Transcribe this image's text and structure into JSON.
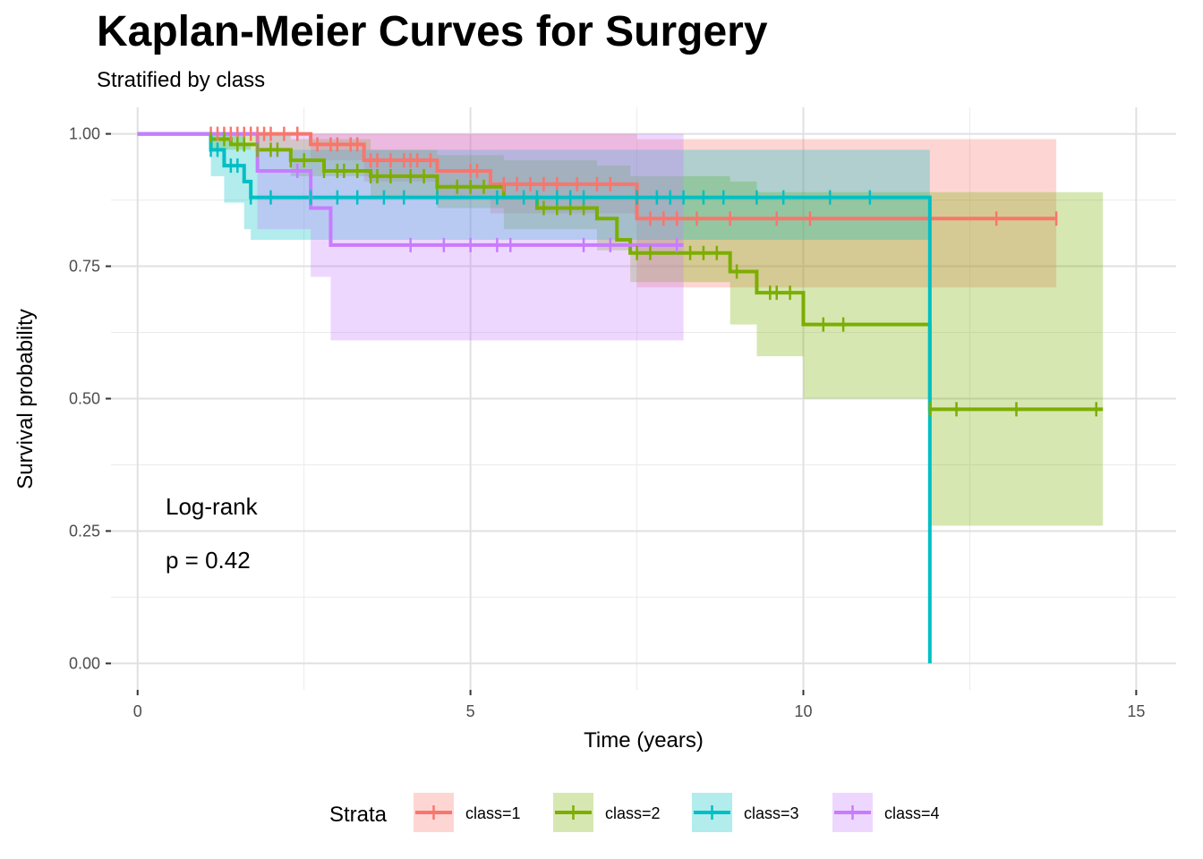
{
  "chart_data": {
    "type": "line",
    "title": "Kaplan-Meier Curves for Surgery",
    "subtitle": "Stratified by class",
    "xlabel": "Time (years)",
    "ylabel": "Survival probability",
    "xlim": [
      -0.4,
      15.6
    ],
    "ylim": [
      -0.05,
      1.05
    ],
    "x_ticks": [
      0,
      5,
      10,
      15
    ],
    "x_tick_labels": [
      "0",
      "5",
      "10",
      "15"
    ],
    "y_ticks": [
      0,
      0.25,
      0.5,
      0.75,
      1.0
    ],
    "y_tick_labels": [
      "0.00",
      "0.25",
      "0.50",
      "0.75",
      "1.00"
    ],
    "grid": true,
    "annotations": [
      "Log-rank",
      "p = 0.42"
    ],
    "legend": {
      "title": "Strata",
      "position": "bottom"
    },
    "series": [
      {
        "name": "class=1",
        "color": "#F8766D",
        "steps": [
          [
            0,
            1.0
          ],
          [
            2.6,
            0.98
          ],
          [
            3.4,
            0.95
          ],
          [
            4.5,
            0.93
          ],
          [
            5.3,
            0.905
          ],
          [
            7.5,
            0.84
          ],
          [
            13.8,
            0.84
          ]
        ],
        "ci": [
          [
            0,
            1.0,
            1.0
          ],
          [
            2.6,
            1.0,
            0.95
          ],
          [
            3.4,
            1.0,
            0.91
          ],
          [
            4.5,
            1.0,
            0.88
          ],
          [
            5.3,
            1.0,
            0.85
          ],
          [
            7.5,
            0.99,
            0.71
          ],
          [
            13.8,
            0.99,
            0.71
          ]
        ],
        "censor": [
          1.1,
          1.2,
          1.3,
          1.4,
          1.5,
          1.6,
          1.7,
          1.8,
          1.9,
          2.0,
          2.2,
          2.4,
          2.7,
          2.9,
          3.0,
          3.2,
          3.3,
          3.5,
          3.6,
          3.8,
          4.0,
          4.1,
          4.2,
          4.4,
          5.0,
          5.1,
          5.5,
          5.7,
          5.9,
          6.1,
          6.3,
          6.6,
          6.9,
          7.1,
          7.7,
          7.9,
          8.1,
          8.4,
          8.9,
          9.6,
          10.1,
          12.9,
          13.8
        ]
      },
      {
        "name": "class=2",
        "color": "#7CAE00",
        "steps": [
          [
            0,
            1.0
          ],
          [
            1.1,
            0.99
          ],
          [
            1.4,
            0.98
          ],
          [
            1.8,
            0.97
          ],
          [
            2.3,
            0.95
          ],
          [
            2.8,
            0.93
          ],
          [
            3.5,
            0.92
          ],
          [
            4.5,
            0.9
          ],
          [
            5.5,
            0.88
          ],
          [
            6.0,
            0.86
          ],
          [
            6.9,
            0.84
          ],
          [
            7.2,
            0.8
          ],
          [
            7.4,
            0.775
          ],
          [
            8.9,
            0.74
          ],
          [
            9.3,
            0.7
          ],
          [
            10.0,
            0.64
          ],
          [
            11.9,
            0.48
          ],
          [
            14.5,
            0.48
          ]
        ],
        "ci": [
          [
            0,
            1.0,
            1.0
          ],
          [
            1.1,
            1.0,
            0.97
          ],
          [
            2.3,
            0.99,
            0.92
          ],
          [
            3.5,
            0.97,
            0.88
          ],
          [
            4.5,
            0.96,
            0.86
          ],
          [
            5.5,
            0.95,
            0.82
          ],
          [
            6.9,
            0.94,
            0.78
          ],
          [
            7.4,
            0.92,
            0.72
          ],
          [
            8.9,
            0.91,
            0.64
          ],
          [
            9.3,
            0.89,
            0.58
          ],
          [
            10.0,
            0.89,
            0.5
          ],
          [
            11.9,
            0.89,
            0.26
          ],
          [
            14.5,
            0.89,
            0.26
          ]
        ],
        "censor": [
          1.1,
          1.3,
          1.5,
          1.6,
          1.8,
          2.0,
          2.1,
          2.3,
          2.5,
          2.8,
          3.0,
          3.1,
          3.3,
          3.5,
          3.6,
          3.8,
          4.1,
          4.3,
          4.5,
          4.8,
          5.0,
          5.2,
          6.1,
          6.3,
          6.5,
          6.7,
          7.5,
          7.7,
          8.3,
          8.5,
          8.7,
          9.0,
          9.5,
          9.6,
          9.8,
          10.3,
          10.6,
          11.9,
          12.3,
          13.2,
          14.4
        ]
      },
      {
        "name": "class=3",
        "color": "#00BFC4",
        "steps": [
          [
            0,
            1.0
          ],
          [
            1.1,
            0.97
          ],
          [
            1.3,
            0.94
          ],
          [
            1.6,
            0.91
          ],
          [
            1.7,
            0.88
          ],
          [
            11.9,
            0.0
          ]
        ],
        "ci": [
          [
            0,
            1.0,
            1.0
          ],
          [
            1.1,
            1.0,
            0.92
          ],
          [
            1.3,
            1.0,
            0.87
          ],
          [
            1.6,
            0.98,
            0.82
          ],
          [
            1.7,
            0.97,
            0.8
          ],
          [
            11.9,
            0.97,
            0.8
          ]
        ],
        "censor": [
          1.1,
          1.2,
          1.4,
          1.5,
          1.7,
          2.0,
          2.6,
          3.0,
          3.3,
          3.7,
          4.0,
          4.5,
          5.4,
          5.8,
          6.0,
          6.3,
          6.5,
          6.7,
          7.5,
          7.8,
          8.0,
          8.2,
          8.5,
          8.8,
          9.3,
          9.7,
          10.4,
          11.0
        ]
      },
      {
        "name": "class=4",
        "color": "#C77CFF",
        "steps": [
          [
            0,
            1.0
          ],
          [
            1.8,
            0.93
          ],
          [
            2.6,
            0.86
          ],
          [
            2.9,
            0.79
          ],
          [
            8.2,
            0.79
          ]
        ],
        "ci": [
          [
            0,
            1.0,
            1.0
          ],
          [
            1.8,
            1.0,
            0.82
          ],
          [
            2.6,
            1.0,
            0.73
          ],
          [
            2.9,
            1.0,
            0.61
          ],
          [
            8.2,
            1.0,
            0.61
          ]
        ],
        "censor": [
          2.4,
          4.1,
          4.6,
          5.0,
          5.4,
          5.6,
          6.7,
          7.1,
          8.1
        ]
      }
    ]
  }
}
